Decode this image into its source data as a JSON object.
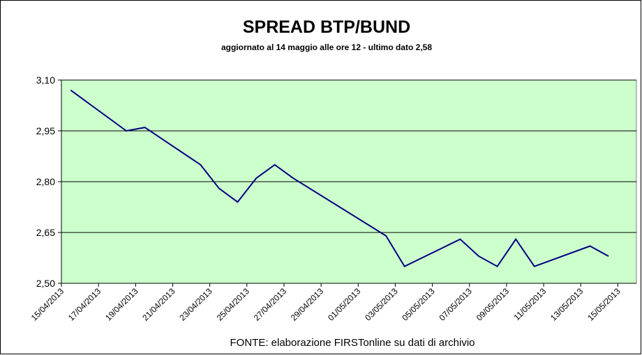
{
  "chart_data": {
    "type": "line",
    "title": "SPREAD  BTP/BUND",
    "subtitle": "aggiornato al 14 maggio alle ore 12 -  ultimo dato 2,58",
    "source": "FONTE: elaborazione FIRSTonline su dati di archivio",
    "x": [
      "15/04/2013",
      "18/04/2013",
      "19/04/2013",
      "22/04/2013",
      "23/04/2013",
      "24/04/2013",
      "25/04/2013",
      "26/04/2013",
      "27/04/2013",
      "02/05/2013",
      "03/05/2013",
      "06/05/2013",
      "07/05/2013",
      "08/05/2013",
      "09/05/2013",
      "10/05/2013",
      "13/05/2013",
      "14/05/2013"
    ],
    "series": [
      {
        "name": "Spread BTP/Bund",
        "color": "#000080",
        "values": [
          3.07,
          2.95,
          2.96,
          2.85,
          2.78,
          2.74,
          2.81,
          2.85,
          2.81,
          2.64,
          2.55,
          2.63,
          2.58,
          2.55,
          2.63,
          2.55,
          2.61,
          2.58
        ]
      }
    ],
    "xlim": [
      "15/04/2013",
      "16/05/2013"
    ],
    "xticks": [
      "15/04/2013",
      "17/04/2013",
      "19/04/2013",
      "21/04/2013",
      "23/04/2013",
      "25/04/2013",
      "27/04/2013",
      "29/04/2013",
      "01/05/2013",
      "03/05/2013",
      "05/05/2013",
      "07/05/2013",
      "09/05/2013",
      "11/05/2013",
      "13/05/2013",
      "15/05/2013"
    ],
    "ylim": [
      2.5,
      3.1
    ],
    "yticks": [
      {
        "value": 2.5,
        "label": "2,50"
      },
      {
        "value": 2.65,
        "label": "2,65"
      },
      {
        "value": 2.8,
        "label": "2,80"
      },
      {
        "value": 2.95,
        "label": "2,95"
      },
      {
        "value": 3.1,
        "label": "3,10"
      }
    ],
    "grid": true,
    "plot_background": "#ccffcc"
  }
}
